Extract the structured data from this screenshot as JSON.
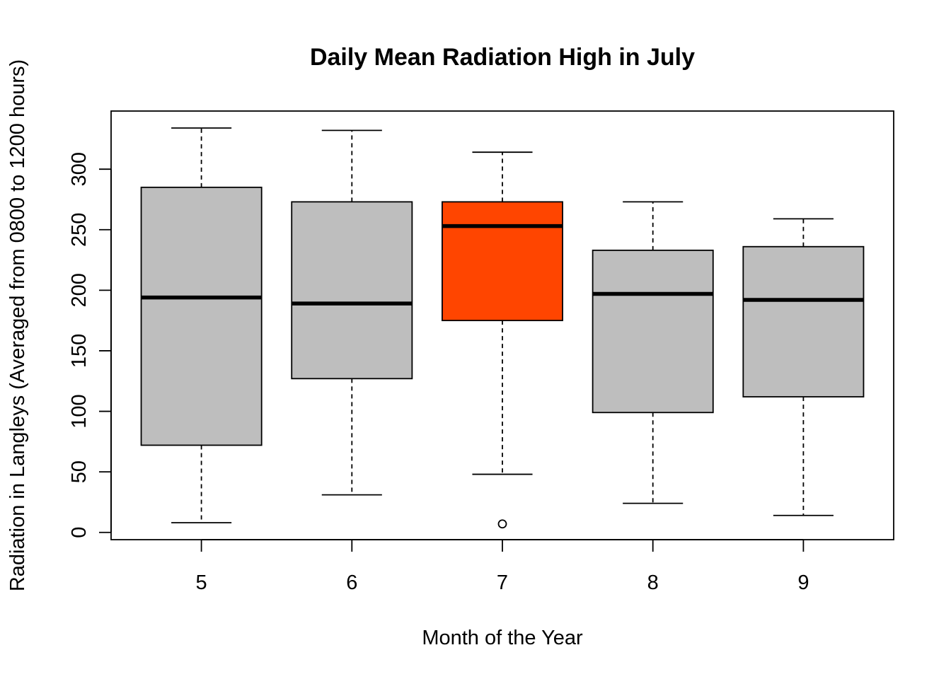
{
  "chart_data": {
    "type": "boxplot",
    "title": "Daily Mean Radiation High in July",
    "xlabel": "Month of the Year",
    "ylabel": "Radiation in Langleys (Averaged from 0800 to 1200 hours)",
    "categories": [
      "5",
      "6",
      "7",
      "8",
      "9"
    ],
    "yticks": [
      0,
      50,
      100,
      150,
      200,
      250,
      300
    ],
    "ylim": [
      -6,
      348
    ],
    "grid": false,
    "legend": "none",
    "colors": {
      "default_fill": "#bebebe",
      "highlight_fill": "#ff4500",
      "line": "#000000"
    },
    "boxes": [
      {
        "category": "5",
        "whisker_low": 8,
        "q1": 72,
        "median": 194,
        "q3": 285,
        "whisker_high": 334,
        "outliers": [],
        "highlight": false
      },
      {
        "category": "6",
        "whisker_low": 31,
        "q1": 127,
        "median": 189,
        "q3": 273,
        "whisker_high": 332,
        "outliers": [],
        "highlight": false
      },
      {
        "category": "7",
        "whisker_low": 48,
        "q1": 175,
        "median": 253,
        "q3": 273,
        "whisker_high": 314,
        "outliers": [
          7
        ],
        "highlight": true
      },
      {
        "category": "8",
        "whisker_low": 24,
        "q1": 99,
        "median": 197,
        "q3": 233,
        "whisker_high": 273,
        "outliers": [],
        "highlight": false
      },
      {
        "category": "9",
        "whisker_low": 14,
        "q1": 112,
        "median": 192,
        "q3": 236,
        "whisker_high": 259,
        "outliers": [],
        "highlight": false
      }
    ]
  }
}
